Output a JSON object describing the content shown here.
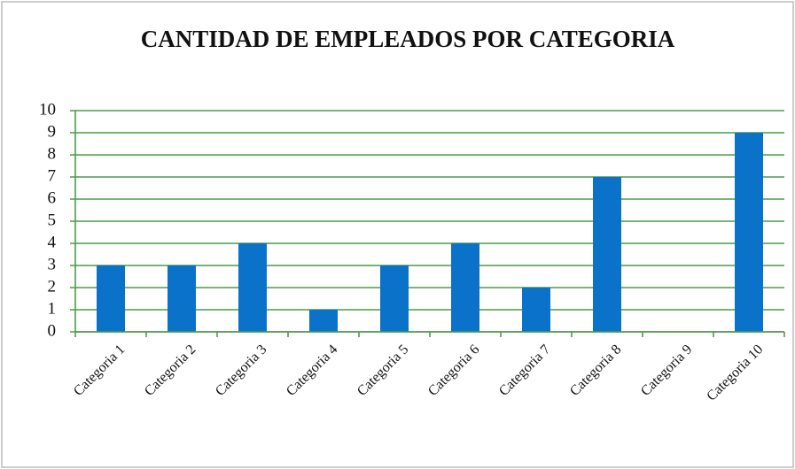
{
  "chart_data": {
    "type": "bar",
    "title": "CANTIDAD DE EMPLEADOS POR CATEGORIA",
    "categories": [
      "Categoria 1",
      "Categoria 2",
      "Categoria 3",
      "Categoria 4",
      "Categoria 5",
      "Categoria 6",
      "Categoria 7",
      "Categoria 8",
      "Categoria 9",
      "Categoria 10"
    ],
    "values": [
      3,
      3,
      4,
      1,
      3,
      4,
      2,
      7,
      0,
      9
    ],
    "color": "#0a72c8",
    "ylim": [
      0,
      10
    ],
    "yticks": [
      0,
      1,
      2,
      3,
      4,
      5,
      6,
      7,
      8,
      9,
      10
    ],
    "grid": true,
    "grid_color": "#4f9a48"
  }
}
